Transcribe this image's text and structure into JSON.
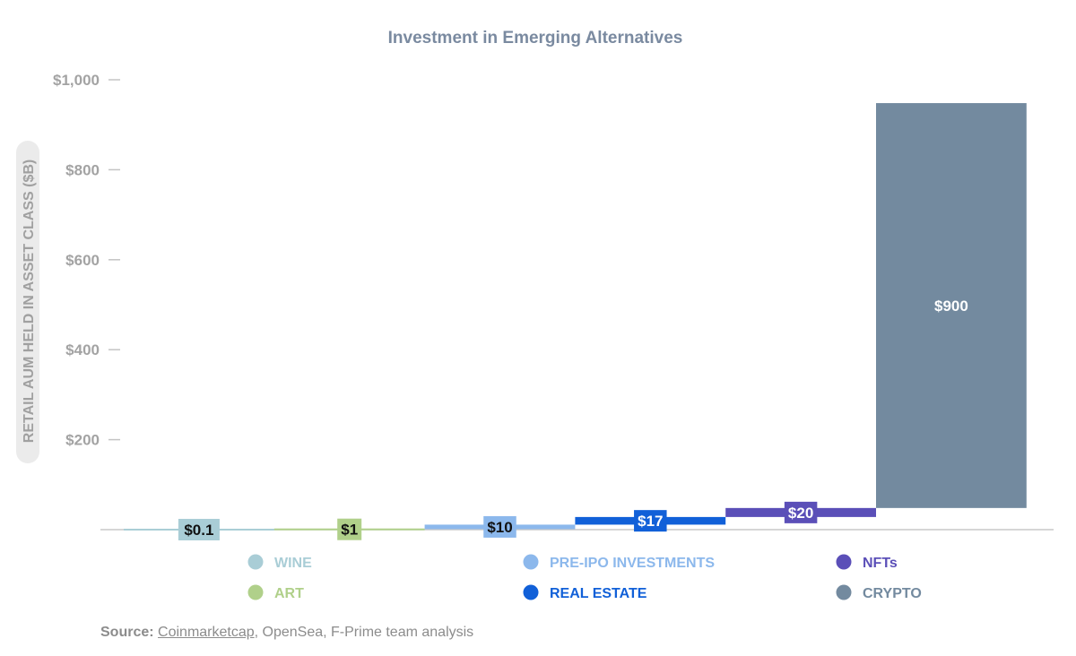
{
  "chart_data": {
    "type": "bar",
    "title": "Investment in Emerging Alternatives",
    "ylabel": "RETAIL AUM HELD IN ASSET CLASS ($B)",
    "xlabel": "",
    "ylim": [
      0,
      1000
    ],
    "yticks": [
      {
        "value": 200,
        "label": "$200"
      },
      {
        "value": 400,
        "label": "$400"
      },
      {
        "value": 600,
        "label": "$600"
      },
      {
        "value": 800,
        "label": "$800"
      },
      {
        "value": 1000,
        "label": "$1,000"
      }
    ],
    "series": [
      {
        "name": "WINE",
        "value": 0.1,
        "label": "$0.1",
        "color": "#a9cdd6",
        "label_color": "#111111"
      },
      {
        "name": "ART",
        "value": 1,
        "label": "$1",
        "color": "#b0d08a",
        "label_color": "#111111"
      },
      {
        "name": "PRE-IPO INVESTMENTS",
        "value": 10,
        "label": "$10",
        "color": "#8cb8ec",
        "label_color": "#111111"
      },
      {
        "name": "REAL ESTATE",
        "value": 17,
        "label": "$17",
        "color": "#1160d8",
        "label_color": "#ffffff"
      },
      {
        "name": "NFTs",
        "value": 20,
        "label": "$20",
        "color": "#5b4fb8",
        "label_color": "#ffffff"
      },
      {
        "name": "CRYPTO",
        "value": 900,
        "label": "$900",
        "color": "#738a9f",
        "label_color": "#ffffff"
      }
    ],
    "legend": {
      "position": "bottom",
      "columns": [
        [
          "WINE",
          "ART"
        ],
        [
          "PRE-IPO INVESTMENTS",
          "REAL ESTATE"
        ],
        [
          "NFTs",
          "CRYPTO"
        ]
      ]
    },
    "grid": false
  },
  "source": {
    "prefix": "Source:",
    "link_text": "Coinmarketcap",
    "rest": ", OpenSea, F-Prime team analysis"
  }
}
